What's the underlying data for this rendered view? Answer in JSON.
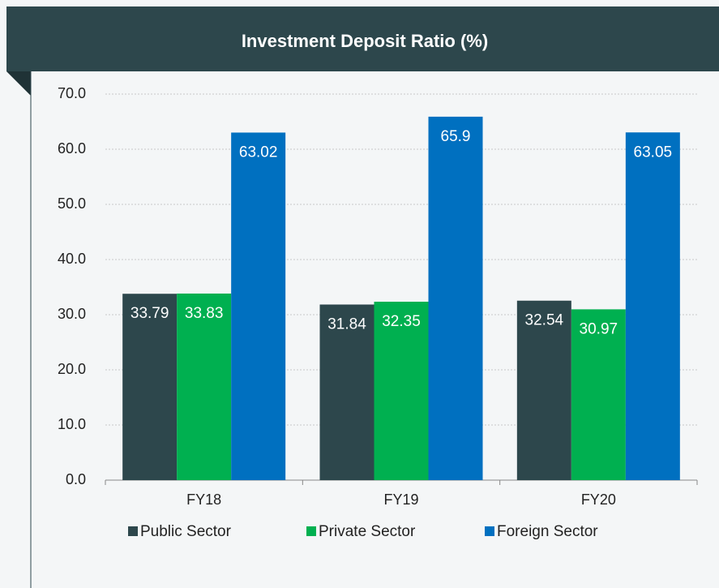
{
  "chart_data": {
    "type": "bar",
    "title": "Investment Deposit Ratio (%)",
    "categories": [
      "FY18",
      "FY19",
      "FY20"
    ],
    "series": [
      {
        "name": "Public Sector",
        "color": "#2d474c",
        "values": [
          33.79,
          31.84,
          32.54
        ]
      },
      {
        "name": "Private Sector",
        "color": "#00b050",
        "values": [
          33.83,
          32.35,
          30.97
        ]
      },
      {
        "name": "Foreign Sector",
        "color": "#0070c0",
        "values": [
          63.02,
          65.9,
          63.05
        ]
      }
    ],
    "ylim": [
      0,
      70
    ],
    "yticks": [
      {
        "value": 0,
        "label": "0.0"
      },
      {
        "value": 10,
        "label": "10.0"
      },
      {
        "value": 20,
        "label": "20.0"
      },
      {
        "value": 30,
        "label": "30.0"
      },
      {
        "value": 40,
        "label": "40.0"
      },
      {
        "value": 50,
        "label": "50.0"
      },
      {
        "value": 60,
        "label": "60.0"
      },
      {
        "value": 70,
        "label": "70.0"
      }
    ],
    "grid": true,
    "legend": "bottom"
  }
}
